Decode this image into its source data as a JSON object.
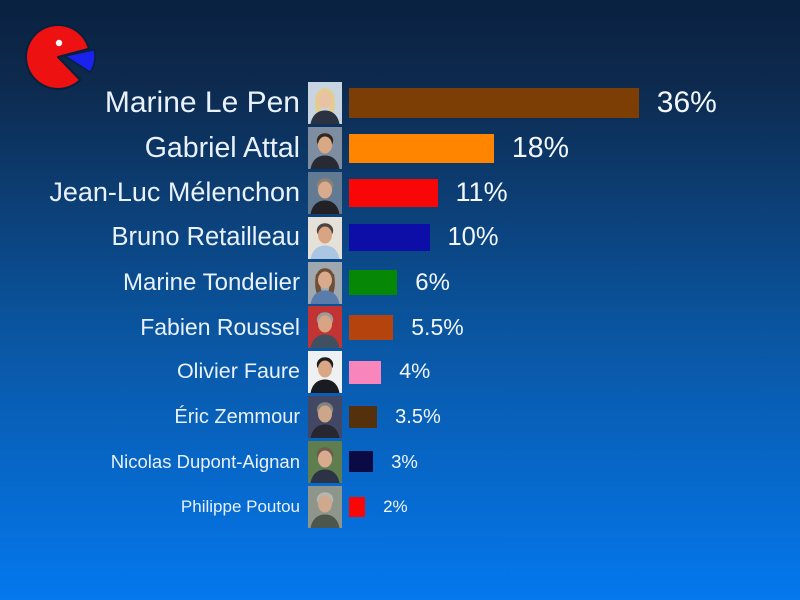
{
  "background": {
    "top_color": "#0a2140",
    "bottom_color": "#0478ee"
  },
  "text_color": "#e8f1fc",
  "logo": {
    "name": "pie-chart-logo",
    "body_color": "#ee1111",
    "slice_color": "#1a22ee",
    "dot_color": "#ffffff",
    "outline_color": "#06203d"
  },
  "rows": [
    {
      "name": "Marine Le Pen",
      "value": 36,
      "label": "36%",
      "color": "#7c3e05",
      "photo": {
        "bg": "#c8d4e2",
        "hair": "#e3cd8d",
        "hair_side": "#e3cd8d",
        "skin": "#e9c2a4",
        "shirt": "#2a3140"
      }
    },
    {
      "name": "Gabriel Attal",
      "value": 18,
      "label": "18%",
      "color": "#ff8400",
      "photo": {
        "bg": "#7e8da0",
        "hair": "#31291f",
        "hair_side": "none",
        "skin": "#d9a986",
        "shirt": "#272a33"
      }
    },
    {
      "name": "Jean-Luc Mélenchon",
      "value": 11,
      "label": "11%",
      "color": "#f90606",
      "photo": {
        "bg": "#637b92",
        "hair": "#8d8274",
        "hair_side": "none",
        "skin": "#d9ab8c",
        "shirt": "#222126"
      }
    },
    {
      "name": "Bruno Retailleau",
      "value": 10,
      "label": "10%",
      "color": "#0d0da8",
      "photo": {
        "bg": "#e5e1d8",
        "hair": "#4d4640",
        "hair_side": "none",
        "skin": "#d9a483",
        "shirt": "#aac6e2"
      }
    },
    {
      "name": "Marine Tondelier",
      "value": 6,
      "label": "6%",
      "color": "#068806",
      "photo": {
        "bg": "#9fa8ae",
        "hair": "#6f4e36",
        "hair_side": "#6f4e36",
        "skin": "#d9ab8c",
        "shirt": "#5a7cab"
      }
    },
    {
      "name": "Fabien Roussel",
      "value": 5.5,
      "label": "5.5%",
      "color": "#b5430e",
      "photo": {
        "bg": "#c23434",
        "hair": "#9c9c9a",
        "hair_side": "none",
        "skin": "#d9a483",
        "shirt": "#415060"
      }
    },
    {
      "name": "Olivier Faure",
      "value": 4,
      "label": "4%",
      "color": "#f985bd",
      "photo": {
        "bg": "#eef0f2",
        "hair": "#1d1d1f",
        "hair_side": "none",
        "skin": "#d9a686",
        "shirt": "#1a1b20"
      }
    },
    {
      "name": "Éric Zemmour",
      "value": 3.5,
      "label": "3.5%",
      "color": "#54300c",
      "photo": {
        "bg": "#424763",
        "hair": "#84827e",
        "hair_side": "none",
        "skin": "#cda689",
        "shirt": "#262730"
      }
    },
    {
      "name": "Nicolas Dupont-Aignan",
      "value": 3,
      "label": "3%",
      "color": "#0a0a45",
      "photo": {
        "bg": "#5f7e50",
        "hair": "#6d5c49",
        "hair_side": "none",
        "skin": "#d9ab8e",
        "shirt": "#2c3344"
      }
    },
    {
      "name": "Philippe Poutou",
      "value": 2,
      "label": "2%",
      "color": "#f90606",
      "photo": {
        "bg": "#8e968c",
        "hair": "#b5b5b1",
        "hair_side": "none",
        "skin": "#cfa88e",
        "shirt": "#4d564c"
      }
    }
  ],
  "chart_data": {
    "type": "bar",
    "orientation": "horizontal",
    "title": "",
    "xlabel": "",
    "ylabel": "",
    "legend": false,
    "grid": false,
    "value_unit": "%",
    "xlim": [
      0,
      36
    ],
    "categories": [
      "Marine Le Pen",
      "Gabriel Attal",
      "Jean-Luc Mélenchon",
      "Bruno Retailleau",
      "Marine Tondelier",
      "Fabien Roussel",
      "Olivier Faure",
      "Éric Zemmour",
      "Nicolas Dupont-Aignan",
      "Philippe Poutou"
    ],
    "values": [
      36,
      18,
      11,
      10,
      6,
      5.5,
      4,
      3.5,
      3,
      2
    ],
    "data_labels": [
      "36%",
      "18%",
      "11%",
      "10%",
      "6%",
      "5.5%",
      "4%",
      "3.5%",
      "3%",
      "2%"
    ],
    "bar_colors": [
      "#7c3e05",
      "#ff8400",
      "#f90606",
      "#0d0da8",
      "#068806",
      "#b5430e",
      "#f985bd",
      "#54300c",
      "#0a0a45",
      "#f90606"
    ]
  }
}
